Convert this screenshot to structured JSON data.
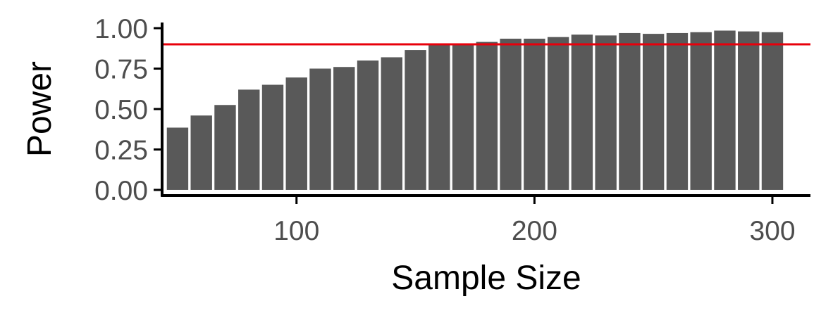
{
  "chart_data": {
    "type": "bar",
    "title": "",
    "xlabel": "Sample Size",
    "ylabel": "Power",
    "x": [
      50,
      60,
      70,
      80,
      90,
      100,
      110,
      120,
      130,
      140,
      150,
      160,
      170,
      180,
      190,
      200,
      210,
      220,
      230,
      240,
      250,
      260,
      270,
      280,
      290,
      300
    ],
    "values": [
      0.385,
      0.46,
      0.525,
      0.62,
      0.65,
      0.695,
      0.75,
      0.76,
      0.8,
      0.82,
      0.865,
      0.9,
      0.905,
      0.915,
      0.935,
      0.935,
      0.945,
      0.96,
      0.955,
      0.97,
      0.965,
      0.97,
      0.975,
      0.985,
      0.98,
      0.975
    ],
    "xlim": [
      43.5,
      316
    ],
    "ylim": [
      -0.035,
      1.035
    ],
    "x_ticks": [
      100,
      200,
      300
    ],
    "x_tick_labels": [
      "100",
      "200",
      "300"
    ],
    "y_ticks": [
      0,
      0.25,
      0.5,
      0.75,
      1
    ],
    "y_tick_labels": [
      "0.00",
      "0.25",
      "0.50",
      "0.75",
      "1.00"
    ],
    "reference_line": {
      "y": 0.9,
      "color": "#e8000b"
    },
    "bar_color": "#595959",
    "axis_color": "#000000",
    "tick_label_color": "#4d4d4d",
    "grid": false,
    "legend": "none"
  }
}
